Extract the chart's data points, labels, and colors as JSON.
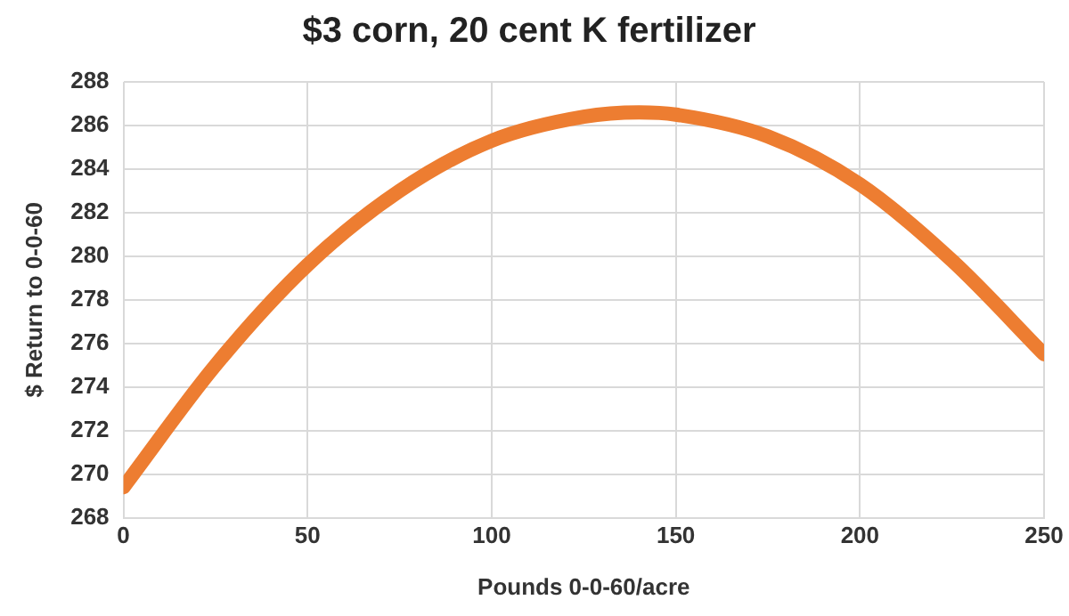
{
  "chart_data": {
    "type": "line",
    "title": "$3 corn, 20 cent K fertilizer",
    "xlabel": "Pounds 0-0-60/acre",
    "ylabel": "$ Return to 0-0-60",
    "x": [
      0,
      25,
      50,
      75,
      100,
      125,
      140,
      150,
      175,
      200,
      225,
      250
    ],
    "series": [
      {
        "color": "#ed7d31",
        "values": [
          269.4,
          275.0,
          279.6,
          283.0,
          285.3,
          286.4,
          286.6,
          286.5,
          285.5,
          283.3,
          279.8,
          275.5
        ]
      }
    ],
    "xlim": [
      0,
      250
    ],
    "xticks": [
      0,
      50,
      100,
      150,
      200,
      250
    ],
    "ylim": [
      268,
      288
    ],
    "yticks": [
      268,
      270,
      272,
      274,
      276,
      278,
      280,
      282,
      284,
      286,
      288
    ],
    "grid": true,
    "legend": false,
    "marker": "none",
    "line_style": "solid"
  }
}
